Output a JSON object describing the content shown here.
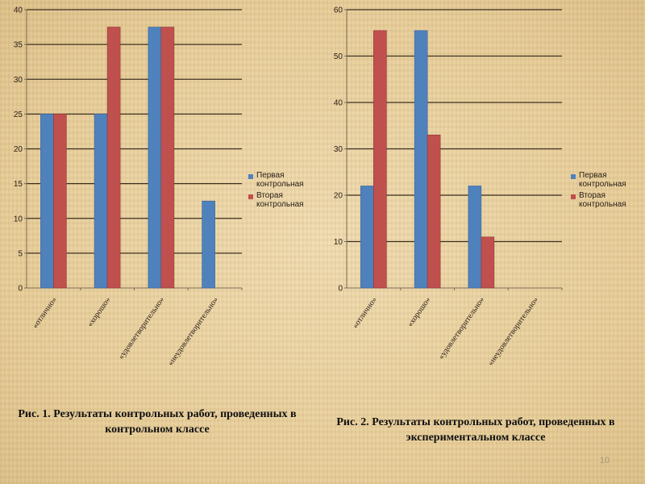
{
  "chart_data": [
    {
      "type": "bar",
      "categories": [
        "«отлично»",
        "«хорошо»",
        "«удовлетворительно»",
        "«неудовлетворительно»"
      ],
      "series": [
        {
          "name": "Первая контрольная",
          "values": [
            25,
            25,
            37.5,
            12.5
          ]
        },
        {
          "name": "Вторая контрольная",
          "values": [
            25,
            37.5,
            37.5,
            0
          ]
        }
      ],
      "yticks": [
        "0",
        "5",
        "10",
        "15",
        "20",
        "25",
        "30",
        "35",
        "40"
      ],
      "ylim": [
        0,
        40
      ],
      "grid": true,
      "legend": "right",
      "caption": "Рис. 1. Результаты контрольных работ, проведенных в контрольном классе"
    },
    {
      "type": "bar",
      "categories": [
        "«отлично»",
        "«хорошо»",
        "«удовлетворительно»",
        "«неудовлетворительно»"
      ],
      "series": [
        {
          "name": "Первая контрольная",
          "values": [
            22,
            55.5,
            22,
            0
          ]
        },
        {
          "name": "Вторая контрольная",
          "values": [
            55.5,
            33,
            11,
            0
          ]
        }
      ],
      "yticks": [
        "0",
        "10",
        "20",
        "30",
        "40",
        "50",
        "60"
      ],
      "ylim": [
        0,
        60
      ],
      "grid": true,
      "legend": "right",
      "caption": "Рис. 2. Результаты контрольных работ, проведенных в экспериментальном классе"
    }
  ],
  "colors": {
    "series1": "#4f81bd",
    "series1_edge": "#3a6496",
    "series2": "#c0504d",
    "series2_edge": "#8c3836",
    "gridline": "#3c3020",
    "axis": "#7a6a55",
    "text": "#2a2018"
  },
  "page_number": "10"
}
